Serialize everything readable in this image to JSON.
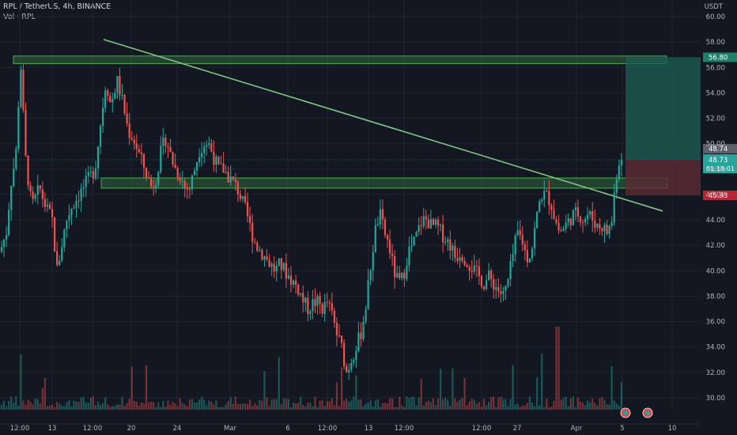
{
  "header": {
    "symbol_line": "RPL / TetherUS, 4h, BINANCE",
    "volume_line": "Vol · RPL",
    "currency": "USDT"
  },
  "colors": {
    "background": "#131722",
    "up": "#26a69a",
    "down": "#ef5350",
    "zone": "#4caf50",
    "trendline": "#81c784",
    "target_zone": "#1e5b52",
    "stop_zone": "#5c2a35",
    "axis_text": "#b2b5be"
  },
  "chart_data": {
    "type": "candlestick",
    "timeframe": "4h",
    "ylim": [
      29,
      61
    ],
    "y_ticks": [
      30,
      32,
      34,
      36,
      38,
      40,
      42,
      44,
      46,
      48,
      50,
      52,
      54,
      56,
      58,
      60
    ],
    "y_tick_labels": [
      "30.00",
      "32.00",
      "34.00",
      "36.00",
      "38.00",
      "40.00",
      "42.00",
      "44.00",
      "46.00",
      "48.00",
      "50.00",
      "52.00",
      "54.00",
      "56.00",
      "58.00",
      "60.00"
    ],
    "x_tick_labels": [
      "12:00",
      "13",
      "12:00",
      "20",
      "24",
      "Mar",
      "6",
      "12:00",
      "13",
      "12:00",
      "12:00",
      "27",
      "Apr",
      "5",
      "10"
    ],
    "price_points": [
      [
        0,
        41.5
      ],
      [
        8,
        43
      ],
      [
        14,
        47
      ],
      [
        20,
        49
      ],
      [
        26,
        56.5
      ],
      [
        32,
        49
      ],
      [
        40,
        45
      ],
      [
        50,
        46.5
      ],
      [
        58,
        45
      ],
      [
        66,
        44
      ],
      [
        72,
        40
      ],
      [
        78,
        42
      ],
      [
        84,
        44
      ],
      [
        90,
        45
      ],
      [
        100,
        46
      ],
      [
        110,
        47
      ],
      [
        120,
        48
      ],
      [
        128,
        52
      ],
      [
        134,
        55
      ],
      [
        140,
        53
      ],
      [
        148,
        55
      ],
      [
        156,
        53
      ],
      [
        162,
        51
      ],
      [
        168,
        50.5
      ],
      [
        174,
        49.5
      ],
      [
        180,
        48.5
      ],
      [
        186,
        47.5
      ],
      [
        192,
        46.5
      ],
      [
        198,
        47.5
      ],
      [
        204,
        49.5
      ],
      [
        210,
        50.5
      ],
      [
        216,
        49
      ],
      [
        222,
        48
      ],
      [
        228,
        47.5
      ],
      [
        234,
        46.5
      ],
      [
        240,
        46.5
      ],
      [
        246,
        48
      ],
      [
        252,
        49.5
      ],
      [
        258,
        50
      ],
      [
        264,
        50
      ],
      [
        270,
        49
      ],
      [
        276,
        48
      ],
      [
        282,
        48
      ],
      [
        288,
        47.5
      ],
      [
        294,
        47
      ],
      [
        300,
        46.5
      ],
      [
        306,
        45.5
      ],
      [
        312,
        44.5
      ],
      [
        318,
        43
      ],
      [
        324,
        42
      ],
      [
        330,
        41.5
      ],
      [
        336,
        41
      ],
      [
        342,
        40.5
      ],
      [
        348,
        40
      ],
      [
        354,
        40.5
      ],
      [
        360,
        40
      ],
      [
        366,
        39.5
      ],
      [
        372,
        39
      ],
      [
        378,
        38.5
      ],
      [
        384,
        37.5
      ],
      [
        390,
        37
      ],
      [
        396,
        37.5
      ],
      [
        402,
        37.5
      ],
      [
        408,
        37
      ],
      [
        414,
        37.5
      ],
      [
        420,
        36.5
      ],
      [
        426,
        35
      ],
      [
        432,
        34
      ],
      [
        438,
        32
      ],
      [
        444,
        33
      ],
      [
        450,
        34
      ],
      [
        456,
        35
      ],
      [
        462,
        37
      ],
      [
        468,
        40
      ],
      [
        474,
        43
      ],
      [
        480,
        44.5
      ],
      [
        486,
        43
      ],
      [
        492,
        42
      ],
      [
        498,
        40
      ],
      [
        504,
        39
      ],
      [
        510,
        39.5
      ],
      [
        516,
        41.5
      ],
      [
        522,
        42
      ],
      [
        528,
        43
      ],
      [
        534,
        44
      ],
      [
        540,
        44
      ],
      [
        546,
        43.5
      ],
      [
        552,
        43.5
      ],
      [
        558,
        43
      ],
      [
        564,
        42.5
      ],
      [
        570,
        42
      ],
      [
        576,
        41
      ],
      [
        582,
        41.5
      ],
      [
        588,
        41
      ],
      [
        594,
        40.5
      ],
      [
        600,
        40
      ],
      [
        606,
        39.5
      ],
      [
        612,
        39
      ],
      [
        618,
        39.5
      ],
      [
        624,
        39
      ],
      [
        630,
        38.5
      ],
      [
        636,
        38
      ],
      [
        642,
        39
      ],
      [
        648,
        41
      ],
      [
        654,
        43
      ],
      [
        660,
        42.5
      ],
      [
        666,
        41
      ],
      [
        672,
        41.5
      ],
      [
        678,
        44
      ],
      [
        684,
        46
      ],
      [
        690,
        46
      ],
      [
        696,
        45.5
      ],
      [
        702,
        44
      ],
      [
        708,
        43
      ],
      [
        714,
        43.5
      ],
      [
        720,
        44
      ],
      [
        726,
        44.5
      ],
      [
        732,
        44.5
      ],
      [
        738,
        44
      ],
      [
        744,
        44.5
      ],
      [
        750,
        44
      ],
      [
        756,
        43.5
      ],
      [
        762,
        43.5
      ],
      [
        768,
        43
      ],
      [
        774,
        44
      ],
      [
        778,
        47
      ],
      [
        782,
        48.5
      ],
      [
        786,
        48.8
      ]
    ],
    "current_price": 48.73,
    "current_price_label": "48.73",
    "countdown_label": "01:18:01",
    "grey_marker_label": "48.74",
    "target_price_label": "56.80",
    "stop_price_label": "45.93",
    "resistance_zone": {
      "low": 56.3,
      "high": 56.9
    },
    "breakout_zone": {
      "low": 46.5,
      "high": 47.3
    },
    "trendline": {
      "from_price": 58.2,
      "to_price": 44.7
    },
    "position": {
      "entry": 48.73,
      "target": 56.8,
      "stop": 45.93
    },
    "volume_series": "Vol · RPL"
  }
}
